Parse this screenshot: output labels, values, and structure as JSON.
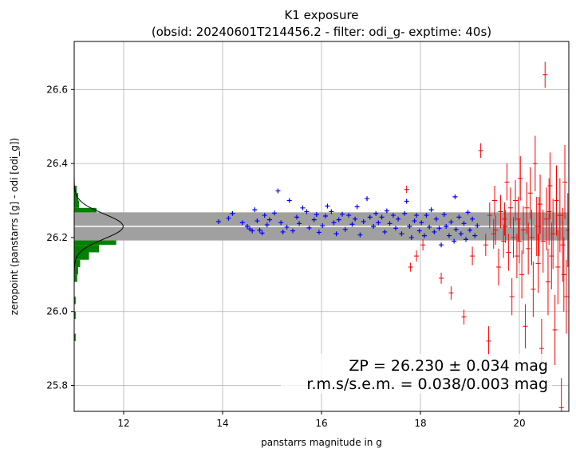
{
  "chart_data": {
    "type": "scatter",
    "title": "K1 exposure",
    "subtitle": "(obsid: 20240601T214456.2 - filter: odi_g- exptime: 40s)",
    "xlabel": "panstarrs magnitude in g",
    "ylabel": "zeropoint (panstarrs [g] - odi [odi_g])",
    "xlim": [
      11.0,
      21.0
    ],
    "ylim": [
      25.73,
      26.73
    ],
    "xticks": [
      12,
      14,
      16,
      18,
      20
    ],
    "yticks": [
      25.8,
      26.0,
      26.2,
      26.4,
      26.6
    ],
    "xtick_labels": [
      "12",
      "14",
      "16",
      "18",
      "20"
    ],
    "ytick_labels": [
      "25.8",
      "26.0",
      "26.2",
      "26.4",
      "26.6"
    ],
    "grid": true,
    "zeropoint": 26.23,
    "rms": 0.038,
    "sem": 0.003,
    "band_range": [
      26.192,
      26.268
    ],
    "annotation_line1": "ZP = 26.230 ± 0.034 mag",
    "annotation_line2": "r.m.s/s.e.m. = 0.038/0.003 mag",
    "annotation_position": "bottom-right",
    "colors": {
      "used": "#0000ff",
      "rejected": "#ff0000",
      "band": "#a0a0a0",
      "zp_line": "#ffffff",
      "histogram": "#008000",
      "gaussian": "#000000",
      "grid": "#b0b0b0"
    },
    "histogram": {
      "orientation": "horizontal",
      "bins": [
        {
          "y0": 26.32,
          "y1": 26.34,
          "count": 0.05
        },
        {
          "y0": 26.3,
          "y1": 26.32,
          "count": 0.08
        },
        {
          "y0": 26.28,
          "y1": 26.3,
          "count": 0.1
        },
        {
          "y0": 26.26,
          "y1": 26.28,
          "count": 0.45
        },
        {
          "y0": 26.24,
          "y1": 26.26,
          "count": 0.7
        },
        {
          "y0": 26.22,
          "y1": 26.24,
          "count": 0.95
        },
        {
          "y0": 26.2,
          "y1": 26.22,
          "count": 1.2
        },
        {
          "y0": 26.18,
          "y1": 26.2,
          "count": 0.85
        },
        {
          "y0": 26.16,
          "y1": 26.18,
          "count": 0.5
        },
        {
          "y0": 26.14,
          "y1": 26.16,
          "count": 0.3
        },
        {
          "y0": 26.12,
          "y1": 26.14,
          "count": 0.12
        },
        {
          "y0": 26.1,
          "y1": 26.12,
          "count": 0.08
        },
        {
          "y0": 26.08,
          "y1": 26.1,
          "count": 0.06
        },
        {
          "y0": 26.02,
          "y1": 26.04,
          "count": 0.03
        },
        {
          "y0": 25.98,
          "y1": 26.0,
          "count": 0.03
        },
        {
          "y0": 25.92,
          "y1": 25.94,
          "count": 0.03
        }
      ],
      "gaussian_peak": 0.99,
      "gaussian_sigma": 0.034
    },
    "series": [
      {
        "role": "used",
        "color": "#0000ff",
        "marker": "+",
        "points": [
          [
            13.92,
            26.243
          ],
          [
            14.12,
            26.252
          ],
          [
            14.2,
            26.265
          ],
          [
            14.4,
            26.24
          ],
          [
            14.5,
            26.23
          ],
          [
            14.55,
            26.223
          ],
          [
            14.6,
            26.218
          ],
          [
            14.65,
            26.275
          ],
          [
            14.7,
            26.245
          ],
          [
            14.75,
            26.22
          ],
          [
            14.8,
            26.212
          ],
          [
            14.85,
            26.26
          ],
          [
            14.9,
            26.234
          ],
          [
            14.95,
            26.248
          ],
          [
            15.05,
            26.266
          ],
          [
            15.12,
            26.326
          ],
          [
            15.18,
            26.24
          ],
          [
            15.22,
            26.215
          ],
          [
            15.3,
            26.228
          ],
          [
            15.35,
            26.3
          ],
          [
            15.42,
            26.218
          ],
          [
            15.5,
            26.255
          ],
          [
            15.55,
            26.238
          ],
          [
            15.62,
            26.28
          ],
          [
            15.7,
            26.27
          ],
          [
            15.75,
            26.226
          ],
          [
            15.85,
            26.248
          ],
          [
            15.9,
            26.262
          ],
          [
            15.95,
            26.214
          ],
          [
            16.02,
            26.232
          ],
          [
            16.08,
            26.258
          ],
          [
            16.12,
            26.285
          ],
          [
            16.2,
            26.27
          ],
          [
            16.25,
            26.24
          ],
          [
            16.3,
            26.21
          ],
          [
            16.35,
            26.248
          ],
          [
            16.42,
            26.263
          ],
          [
            16.48,
            26.222
          ],
          [
            16.55,
            26.26
          ],
          [
            16.62,
            26.236
          ],
          [
            16.68,
            26.25
          ],
          [
            16.72,
            26.283
          ],
          [
            16.78,
            26.207
          ],
          [
            16.85,
            26.243
          ],
          [
            16.92,
            26.305
          ],
          [
            16.98,
            26.255
          ],
          [
            17.05,
            26.23
          ],
          [
            17.1,
            26.265
          ],
          [
            17.15,
            26.24
          ],
          [
            17.22,
            26.255
          ],
          [
            17.28,
            26.215
          ],
          [
            17.32,
            26.272
          ],
          [
            17.38,
            26.238
          ],
          [
            17.45,
            26.26
          ],
          [
            17.5,
            26.225
          ],
          [
            17.55,
            26.25
          ],
          [
            17.62,
            26.21
          ],
          [
            17.68,
            26.265
          ],
          [
            17.72,
            26.298
          ],
          [
            17.78,
            26.23
          ],
          [
            17.82,
            26.2
          ],
          [
            17.88,
            26.245
          ],
          [
            17.92,
            26.26
          ],
          [
            17.98,
            26.218
          ],
          [
            18.02,
            26.24
          ],
          [
            18.08,
            26.205
          ],
          [
            18.12,
            26.26
          ],
          [
            18.18,
            26.228
          ],
          [
            18.22,
            26.275
          ],
          [
            18.28,
            26.215
          ],
          [
            18.32,
            26.25
          ],
          [
            18.38,
            26.225
          ],
          [
            18.42,
            26.18
          ],
          [
            18.48,
            26.262
          ],
          [
            18.52,
            26.23
          ],
          [
            18.58,
            26.205
          ],
          [
            18.62,
            26.242
          ],
          [
            18.68,
            26.19
          ],
          [
            18.7,
            26.31
          ],
          [
            18.72,
            26.222
          ],
          [
            18.78,
            26.255
          ],
          [
            18.82,
            26.21
          ],
          [
            18.88,
            26.238
          ],
          [
            18.92,
            26.195
          ],
          [
            18.96,
            26.268
          ],
          [
            19.0,
            26.22
          ],
          [
            19.05,
            26.25
          ],
          [
            19.1,
            26.205
          ],
          [
            19.15,
            26.232
          ]
        ]
      },
      {
        "role": "rejected",
        "color": "#ff0000",
        "marker": "+",
        "points": [
          [
            17.72,
            26.33,
            0.01
          ],
          [
            17.8,
            26.12,
            0.012
          ],
          [
            17.92,
            26.15,
            0.015
          ],
          [
            18.05,
            26.18,
            0.015
          ],
          [
            18.42,
            26.09,
            0.015
          ],
          [
            18.62,
            26.05,
            0.018
          ],
          [
            18.88,
            25.985,
            0.02
          ],
          [
            19.05,
            26.15,
            0.025
          ],
          [
            19.22,
            26.435,
            0.02
          ],
          [
            19.32,
            26.18,
            0.03
          ],
          [
            19.4,
            26.26,
            0.035
          ],
          [
            19.48,
            26.21,
            0.04
          ],
          [
            19.52,
            26.22,
            0.04
          ],
          [
            19.58,
            26.12,
            0.05
          ],
          [
            19.62,
            26.27,
            0.045
          ],
          [
            19.68,
            26.19,
            0.045
          ],
          [
            19.72,
            26.23,
            0.045
          ],
          [
            19.75,
            26.35,
            0.05
          ],
          [
            19.78,
            26.16,
            0.05
          ],
          [
            19.82,
            26.28,
            0.055
          ],
          [
            19.85,
            26.04,
            0.05
          ],
          [
            19.88,
            26.2,
            0.055
          ],
          [
            19.92,
            26.3,
            0.055
          ],
          [
            19.95,
            26.15,
            0.06
          ],
          [
            19.98,
            26.25,
            0.06
          ],
          [
            20.02,
            26.36,
            0.06
          ],
          [
            20.05,
            26.1,
            0.065
          ],
          [
            20.08,
            26.22,
            0.065
          ],
          [
            20.12,
            25.96,
            0.06
          ],
          [
            20.15,
            26.28,
            0.07
          ],
          [
            20.18,
            26.17,
            0.07
          ],
          [
            20.22,
            26.32,
            0.07
          ],
          [
            20.25,
            26.2,
            0.075
          ],
          [
            20.28,
            26.06,
            0.075
          ],
          [
            20.32,
            26.4,
            0.075
          ],
          [
            20.35,
            26.23,
            0.08
          ],
          [
            20.38,
            26.13,
            0.08
          ],
          [
            20.42,
            26.29,
            0.08
          ],
          [
            20.45,
            25.9,
            0.08
          ],
          [
            20.48,
            26.19,
            0.085
          ],
          [
            20.52,
            26.64,
            0.035
          ],
          [
            20.55,
            26.25,
            0.085
          ],
          [
            20.58,
            26.08,
            0.09
          ],
          [
            20.62,
            26.34,
            0.09
          ],
          [
            20.65,
            26.15,
            0.09
          ],
          [
            20.68,
            26.21,
            0.095
          ],
          [
            20.72,
            25.95,
            0.095
          ],
          [
            20.75,
            26.3,
            0.095
          ],
          [
            20.78,
            26.12,
            0.1
          ],
          [
            20.82,
            26.26,
            0.1
          ],
          [
            20.85,
            25.74,
            0.08
          ],
          [
            20.88,
            26.18,
            0.1
          ],
          [
            20.92,
            26.35,
            0.1
          ],
          [
            20.95,
            26.04,
            0.1
          ],
          [
            20.98,
            26.22,
            0.1
          ],
          [
            19.38,
            25.92,
            0.04
          ],
          [
            19.5,
            26.3,
            0.04
          ],
          [
            19.7,
            26.25,
            0.045
          ],
          [
            20.0,
            26.19,
            0.06
          ],
          [
            20.4,
            26.23,
            0.08
          ],
          [
            20.6,
            26.27,
            0.09
          ],
          [
            20.9,
            26.1,
            0.1
          ]
        ]
      }
    ]
  }
}
